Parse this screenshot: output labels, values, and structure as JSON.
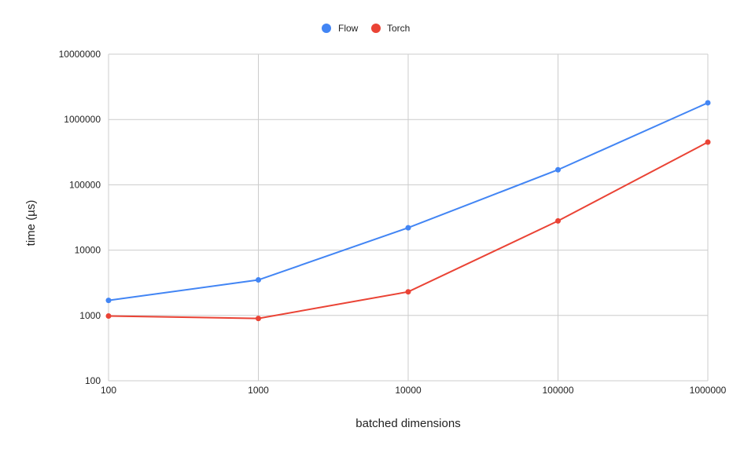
{
  "chart_data": {
    "type": "line",
    "title": "",
    "xlabel": "batched dimensions",
    "ylabel": "time (µs)",
    "x_scale": "log",
    "y_scale": "log",
    "x": [
      100,
      1000,
      10000,
      100000,
      1000000
    ],
    "x_tick_labels": [
      "100",
      "1000",
      "10000",
      "100000",
      "1000000"
    ],
    "ylim": [
      100,
      10000000
    ],
    "y_ticks": [
      100,
      1000,
      10000,
      100000,
      1000000,
      10000000
    ],
    "y_tick_labels": [
      "100",
      "1000",
      "10000",
      "100000",
      "1000000",
      "10000000"
    ],
    "grid": true,
    "legend_position": "top-center",
    "series": [
      {
        "name": "Flow",
        "color": "#4285f4",
        "values": [
          1700,
          3500,
          22000,
          170000,
          1800000
        ]
      },
      {
        "name": "Torch",
        "color": "#ea4335",
        "values": [
          980,
          900,
          2300,
          28000,
          450000
        ]
      }
    ]
  }
}
